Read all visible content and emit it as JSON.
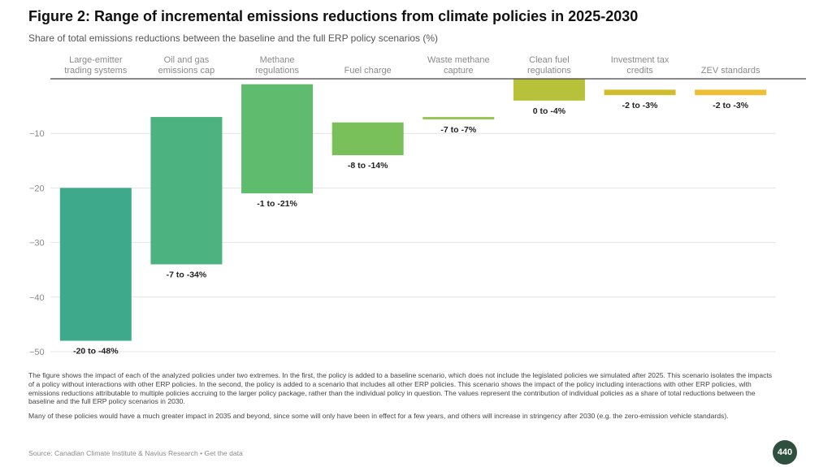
{
  "title": "Figure 2: Range of incremental emissions reductions from climate policies in 2025-2030",
  "subtitle": "Share of total emissions reductions between the baseline and the full ERP policy scenarios (%)",
  "chart_data": {
    "type": "bar",
    "orientation": "vertical floating range",
    "categories": [
      "Large-emitter\ntrading systems",
      "Oil and gas\nemissions cap",
      "Methane\nregulations",
      "Fuel charge",
      "Waste methane\ncapture",
      "Clean fuel\nregulations",
      "Investment tax\ncredits",
      "ZEV standards"
    ],
    "ranges": [
      [
        -20,
        -48
      ],
      [
        -7,
        -34
      ],
      [
        -1,
        -21
      ],
      [
        -8,
        -14
      ],
      [
        -7,
        -7
      ],
      [
        0,
        -4
      ],
      [
        -2,
        -3
      ],
      [
        -2,
        -3
      ]
    ],
    "data_labels": [
      "-20 to -48%",
      "-7 to -34%",
      "-1 to -21%",
      "-8 to -14%",
      "-7 to -7%",
      "0 to -4%",
      "-2 to -3%",
      "-2 to -3%"
    ],
    "colors": [
      "#3fa98b",
      "#4cb27f",
      "#5fbb6d",
      "#79c05a",
      "#96c655",
      "#b7c23a",
      "#d3bb2e",
      "#eebf33"
    ],
    "yticks": [
      -10,
      -20,
      -30,
      -40,
      -50
    ],
    "ylim": [
      0,
      -50
    ],
    "grid": true
  },
  "notes": [
    "The figure shows the impact of each of the analyzed policies under two extremes. In the first, the policy is added to a baseline scenario, which does not include the legislated policies we simulated after 2025. This scenario isolates the impacts of a policy without interactions with other ERP policies. In the second, the policy is added to a scenario that includes all other ERP policies. This scenario shows the impact of the policy including interactions with other ERP policies, with emissions reductions attributable to multiple policies accruing to the larger policy package, rather than the individual policy in question. The values represent the contribution of individual policies as a share of total reductions between the baseline and the full ERP policy scenarios in 2030.",
    "Many of these policies would have a much greater impact in 2035 and beyond, since some will only have been in effect for a few years, and others will increase in stringency after 2030 (e.g. the zero-emission vehicle standards)."
  ],
  "source": {
    "text": "Source: Canadian Climate Institute & Navius Research • ",
    "link": "Get the data"
  },
  "logo_text": "440"
}
